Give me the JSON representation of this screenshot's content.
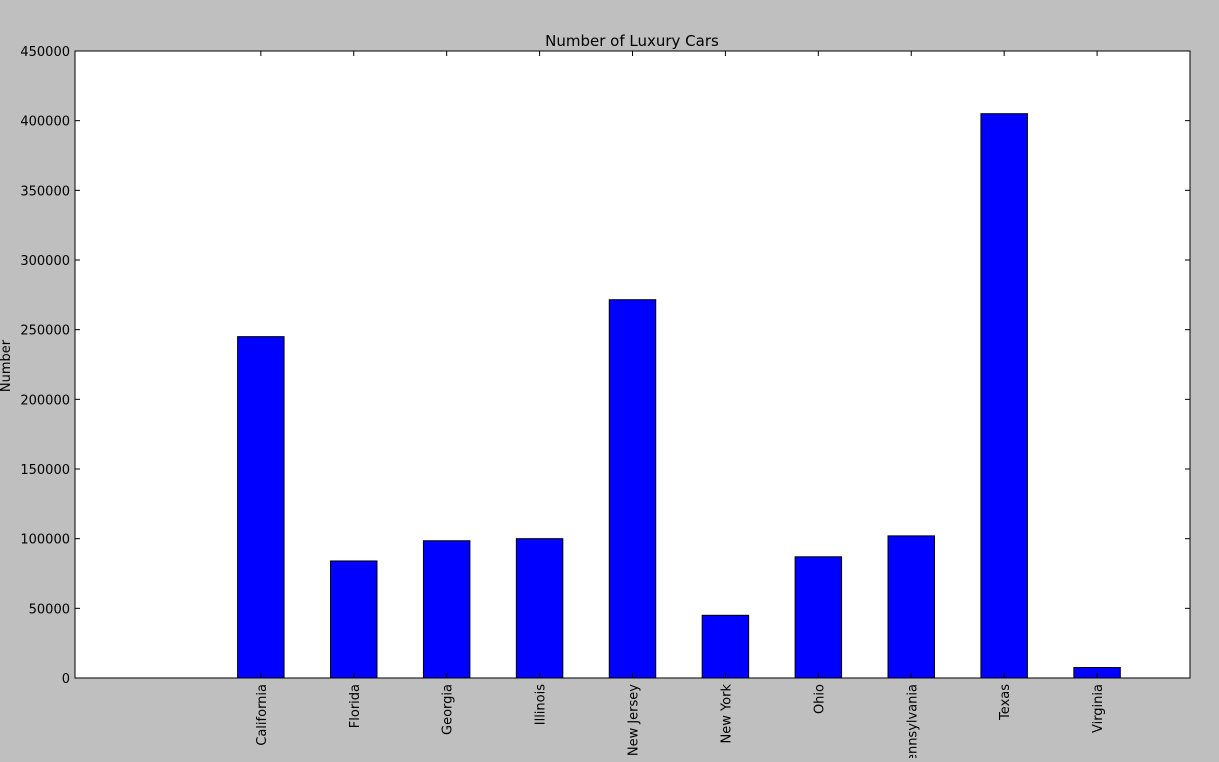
{
  "chart_data": {
    "type": "bar",
    "title": "Number of Luxury Cars",
    "xlabel": "",
    "ylabel": "Number",
    "categories": [
      "California",
      "Florida",
      "Georgia",
      "Illinois",
      "New Jersey",
      "New York",
      "Ohio",
      "Pennsylvania",
      "Texas",
      "Virginia"
    ],
    "values": [
      245000,
      84000,
      98500,
      100000,
      271500,
      45000,
      87000,
      102000,
      405000,
      7500
    ],
    "ylim": [
      0,
      450000
    ],
    "yticks": [
      0,
      50000,
      100000,
      150000,
      200000,
      250000,
      300000,
      350000,
      400000,
      450000
    ],
    "grid": false,
    "colors": {
      "bar": "#0000ff",
      "bar_edge": "#000000",
      "plot_bg": "#ffffff",
      "figure_bg": "#bfbfbf"
    }
  }
}
